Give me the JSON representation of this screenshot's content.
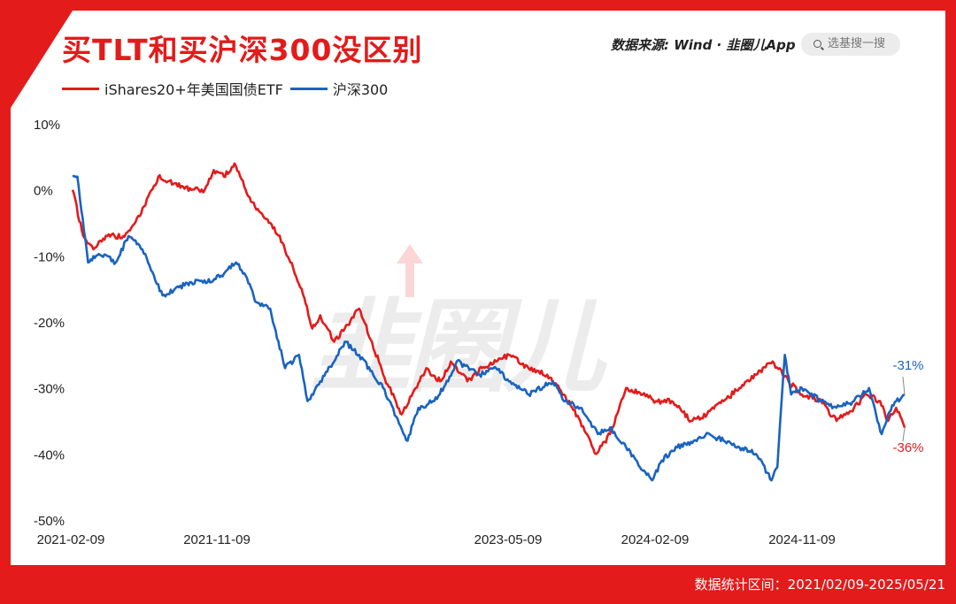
{
  "title": "买TLT和买沪深300没区别",
  "source": "数据来源: Wind · 韭圈儿App",
  "search_placeholder": "选基搜一搜",
  "footer": "数据统计区间：2021/02/09-2025/05/21",
  "watermark": "韭圈儿",
  "colors": {
    "red": "#e31b1b",
    "blue": "#1a63c0",
    "frame": "#e31b1b"
  },
  "chart_data": {
    "type": "line",
    "x_ticks": [
      "2021-02-09",
      "2021-11-09",
      "",
      "2023-05-09",
      "2024-02-09",
      "2024-11-09"
    ],
    "x_range": [
      "2021-02-09",
      "2025-05-21"
    ],
    "y_ticks": [
      "10%",
      "0%",
      "-10%",
      "-20%",
      "-30%",
      "-40%",
      "-50%"
    ],
    "ylim": [
      -50,
      10
    ],
    "legend_position": "top-left",
    "grid": false,
    "series": [
      {
        "name": "iShares20+年美国国债ETF",
        "color": "#e31b1b",
        "end_label": "-36%",
        "points": [
          [
            "2021-02-09",
            0
          ],
          [
            "2021-03-01",
            -7
          ],
          [
            "2021-03-20",
            -9
          ],
          [
            "2021-04-15",
            -7
          ],
          [
            "2021-05-15",
            -7
          ],
          [
            "2021-06-15",
            -4
          ],
          [
            "2021-07-20",
            2
          ],
          [
            "2021-08-20",
            1
          ],
          [
            "2021-09-20",
            0
          ],
          [
            "2021-10-15",
            0
          ],
          [
            "2021-11-01",
            3
          ],
          [
            "2021-11-20",
            2
          ],
          [
            "2021-12-10",
            4
          ],
          [
            "2021-12-31",
            0
          ],
          [
            "2022-01-20",
            -3
          ],
          [
            "2022-02-15",
            -5
          ],
          [
            "2022-03-10",
            -8
          ],
          [
            "2022-03-25",
            -11
          ],
          [
            "2022-04-15",
            -15
          ],
          [
            "2022-05-05",
            -21
          ],
          [
            "2022-05-20",
            -19
          ],
          [
            "2022-06-15",
            -23
          ],
          [
            "2022-07-05",
            -21
          ],
          [
            "2022-08-01",
            -18
          ],
          [
            "2022-08-25",
            -23
          ],
          [
            "2022-09-15",
            -28
          ],
          [
            "2022-10-20",
            -34
          ],
          [
            "2022-11-15",
            -30
          ],
          [
            "2022-12-05",
            -27
          ],
          [
            "2022-12-31",
            -29
          ],
          [
            "2023-01-20",
            -26
          ],
          [
            "2023-02-20",
            -29
          ],
          [
            "2023-03-20",
            -27
          ],
          [
            "2023-04-15",
            -26
          ],
          [
            "2023-05-09",
            -25
          ],
          [
            "2023-06-15",
            -27
          ],
          [
            "2023-07-20",
            -28
          ],
          [
            "2023-08-20",
            -31
          ],
          [
            "2023-09-20",
            -35
          ],
          [
            "2023-10-20",
            -40
          ],
          [
            "2023-11-15",
            -37
          ],
          [
            "2023-12-15",
            -30
          ],
          [
            "2024-01-15",
            -31
          ],
          [
            "2024-02-09",
            -32
          ],
          [
            "2024-03-10",
            -32
          ],
          [
            "2024-04-15",
            -35
          ],
          [
            "2024-05-15",
            -34
          ],
          [
            "2024-06-15",
            -32
          ],
          [
            "2024-07-15",
            -30
          ],
          [
            "2024-08-15",
            -28
          ],
          [
            "2024-09-15",
            -26
          ],
          [
            "2024-10-15",
            -29
          ],
          [
            "2024-11-09",
            -31
          ],
          [
            "2024-12-15",
            -32
          ],
          [
            "2025-01-13",
            -35
          ],
          [
            "2025-02-15",
            -33
          ],
          [
            "2025-03-10",
            -31
          ],
          [
            "2025-04-05",
            -32
          ],
          [
            "2025-04-20",
            -35
          ],
          [
            "2025-05-05",
            -33
          ],
          [
            "2025-05-21",
            -36
          ]
        ]
      },
      {
        "name": "沪深300",
        "color": "#1a63c0",
        "end_label": "-31%",
        "points": [
          [
            "2021-02-09",
            2
          ],
          [
            "2021-02-18",
            2
          ],
          [
            "2021-03-10",
            -11
          ],
          [
            "2021-03-25",
            -10
          ],
          [
            "2021-04-15",
            -10
          ],
          [
            "2021-05-01",
            -11
          ],
          [
            "2021-05-25",
            -7
          ],
          [
            "2021-06-20",
            -9
          ],
          [
            "2021-07-28",
            -16
          ],
          [
            "2021-08-20",
            -15
          ],
          [
            "2021-09-20",
            -14
          ],
          [
            "2021-10-20",
            -14
          ],
          [
            "2021-11-15",
            -13
          ],
          [
            "2021-12-13",
            -11
          ],
          [
            "2021-12-31",
            -13
          ],
          [
            "2022-01-20",
            -17
          ],
          [
            "2022-02-15",
            -18
          ],
          [
            "2022-03-15",
            -27
          ],
          [
            "2022-04-10",
            -25
          ],
          [
            "2022-04-26",
            -32
          ],
          [
            "2022-05-20",
            -29
          ],
          [
            "2022-06-15",
            -26
          ],
          [
            "2022-07-05",
            -23
          ],
          [
            "2022-08-01",
            -25
          ],
          [
            "2022-09-15",
            -30
          ],
          [
            "2022-10-31",
            -38
          ],
          [
            "2022-11-20",
            -33
          ],
          [
            "2022-12-20",
            -32
          ],
          [
            "2023-01-15",
            -29
          ],
          [
            "2023-01-31",
            -26
          ],
          [
            "2023-03-15",
            -28
          ],
          [
            "2023-04-15",
            -27
          ],
          [
            "2023-05-09",
            -29
          ],
          [
            "2023-06-15",
            -31
          ],
          [
            "2023-07-31",
            -29
          ],
          [
            "2023-08-20",
            -32
          ],
          [
            "2023-09-20",
            -33
          ],
          [
            "2023-10-23",
            -37
          ],
          [
            "2023-11-15",
            -36
          ],
          [
            "2023-12-15",
            -39
          ],
          [
            "2024-01-10",
            -42
          ],
          [
            "2024-02-02",
            -44
          ],
          [
            "2024-02-20",
            -41
          ],
          [
            "2024-03-20",
            -39
          ],
          [
            "2024-04-20",
            -38
          ],
          [
            "2024-05-20",
            -37
          ],
          [
            "2024-06-15",
            -38
          ],
          [
            "2024-07-15",
            -39
          ],
          [
            "2024-08-15",
            -40
          ],
          [
            "2024-09-13",
            -44
          ],
          [
            "2024-09-24",
            -42
          ],
          [
            "2024-10-08",
            -25
          ],
          [
            "2024-10-20",
            -31
          ],
          [
            "2024-11-09",
            -30
          ],
          [
            "2024-12-15",
            -32
          ],
          [
            "2025-01-13",
            -33
          ],
          [
            "2025-02-15",
            -32
          ],
          [
            "2025-03-15",
            -30
          ],
          [
            "2025-04-08",
            -37
          ],
          [
            "2025-04-20",
            -34
          ],
          [
            "2025-05-05",
            -32
          ],
          [
            "2025-05-21",
            -31
          ]
        ]
      }
    ]
  }
}
